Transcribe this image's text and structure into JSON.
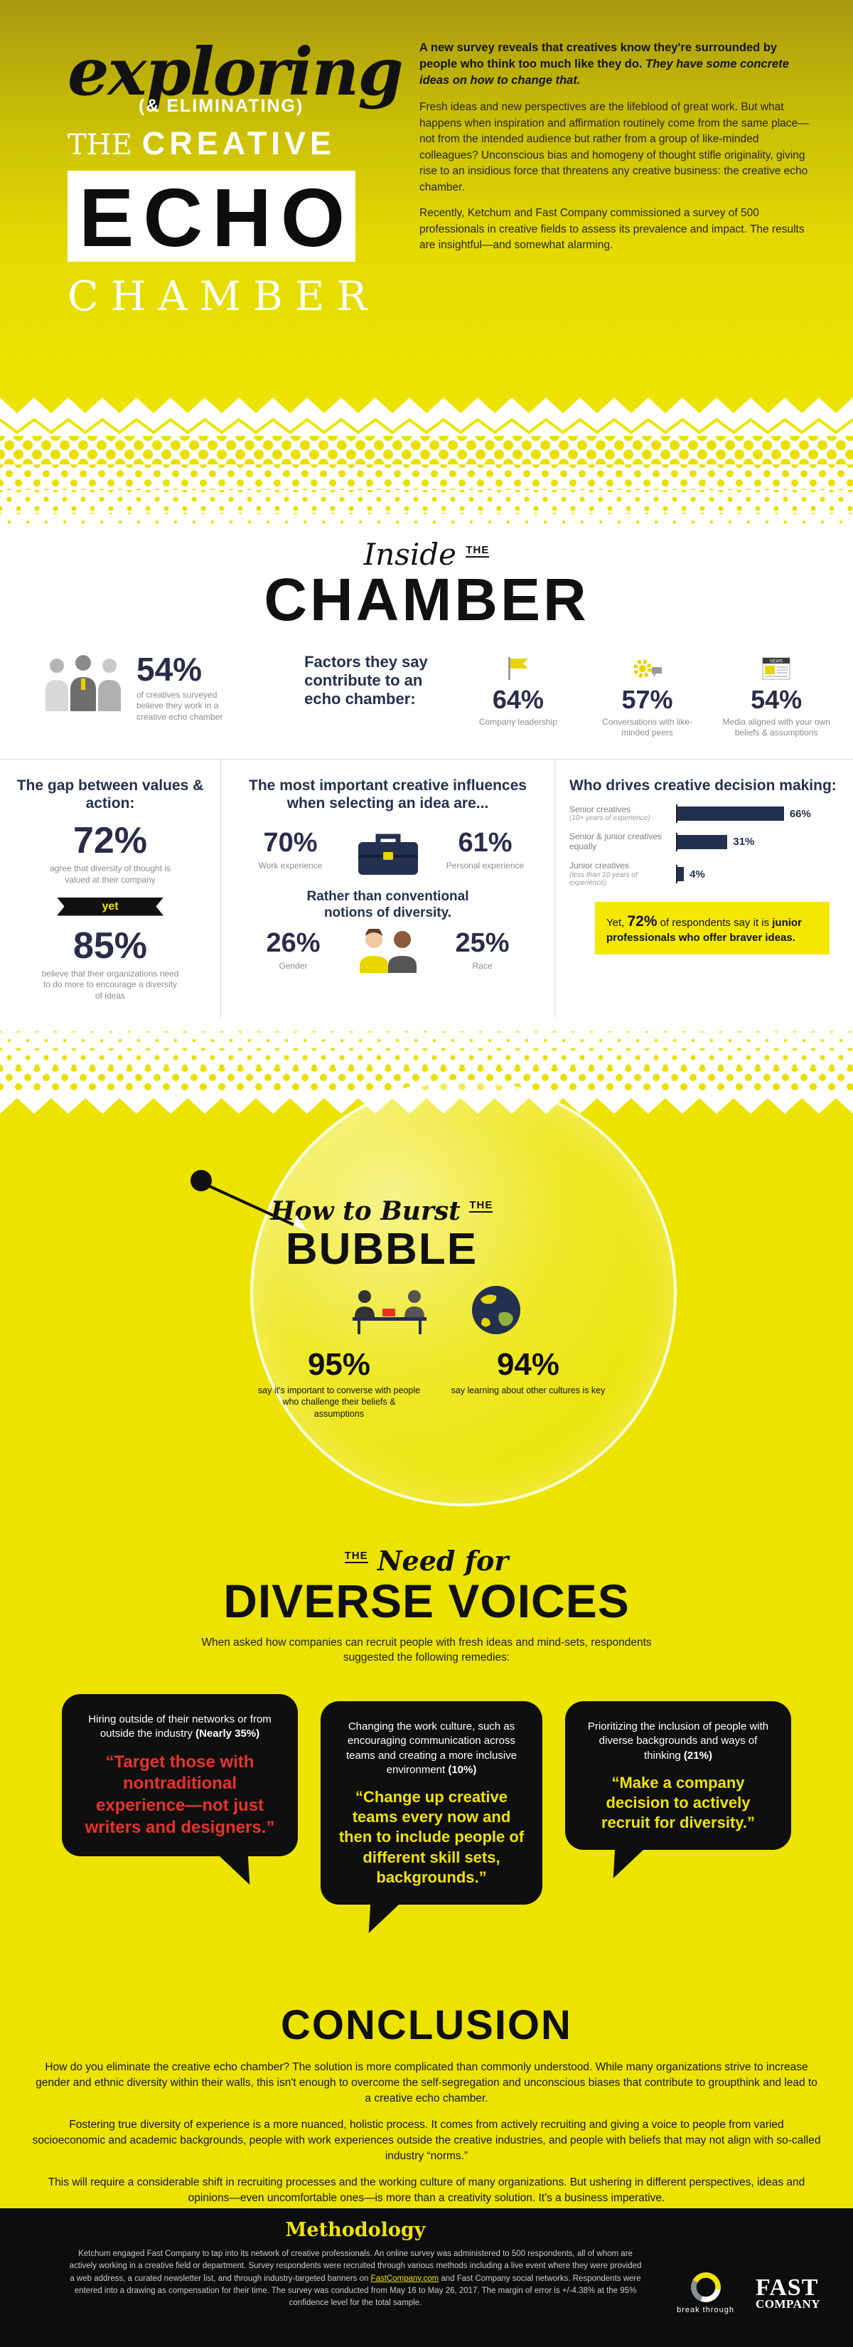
{
  "colors": {
    "yellow": "#ece400",
    "highlight_yellow": "#f5e800",
    "navy": "#233050",
    "red": "#e8332a",
    "black": "#0d0d0d"
  },
  "header": {
    "title_exploring": "exploring",
    "title_eliminating": "(& ELIMINATING)",
    "title_the": "THE",
    "title_creative": "CREATIVE",
    "title_echo": "ECHO",
    "title_chamber": "CHAMBER",
    "intro_bold1": "A new survey reveals that creatives know they're surrounded by people who think too much like they do.",
    "intro_bold2": "They have some concrete ideas on how to change that.",
    "para1": "Fresh ideas and new perspectives are the lifeblood of great work. But what happens when inspiration and affirmation routinely come from the same place—not from the intended audience but rather from a group of like-minded colleagues? Unconscious bias and homogeny of thought stifle originality, giving rise to an insidious force that threatens any creative business: the creative echo chamber.",
    "para2": "Recently, Ketchum and Fast Company commissioned a survey of 500 professionals in creative fields to assess its prevalence and impact. The results are insightful—and somewhat alarming."
  },
  "chamber": {
    "title_inside": "Inside",
    "title_the": "THE",
    "title_chamber": "CHAMBER",
    "stat": {
      "value": "54%",
      "label": "of creatives surveyed believe they work in a creative echo chamber"
    },
    "factors_heading": "Factors they say contribute to an echo chamber:",
    "factors": [
      {
        "value": "64%",
        "label": "Company leadership"
      },
      {
        "value": "57%",
        "label": "Conversations with like-minded peers"
      },
      {
        "value": "54%",
        "label": "Media aligned with your own beliefs & assumptions"
      }
    ],
    "news_icon_label": "NEWS"
  },
  "gap": {
    "title": "The gap between values & action:",
    "stat1": {
      "value": "72%",
      "label": "agree that diversity of thought is valued at their company"
    },
    "yet_label": "yet",
    "stat2": {
      "value": "85%",
      "label": "believe that their organizations need to do more to encourage a diversity of ideas"
    }
  },
  "influences": {
    "title": "The most important creative influences when selecting an idea are...",
    "work": {
      "value": "70%",
      "label": "Work experience"
    },
    "personal": {
      "value": "61%",
      "label": "Personal experience"
    },
    "rather": "Rather than conventional notions of diversity.",
    "gender": {
      "value": "26%",
      "label": "Gender"
    },
    "race": {
      "value": "25%",
      "label": "Race"
    }
  },
  "decision": {
    "title": "Who drives creative decision making:",
    "bars": [
      {
        "label": "Senior creatives",
        "sublabel": "(10+ years of experience)",
        "value": 66,
        "display": "66%"
      },
      {
        "label": "Senior & junior creatives equally",
        "sublabel": "",
        "value": 31,
        "display": "31%"
      },
      {
        "label": "Junior creatives",
        "sublabel": "(less than 10 years of experience)",
        "value": 4,
        "display": "4%"
      }
    ],
    "callout_pre": "Yet, ",
    "callout_value": "72%",
    "callout_mid": " of respondents say it is ",
    "callout_bold": "junior professionals who offer braver ideas."
  },
  "bubble": {
    "title_how": "How to Burst",
    "title_the": "THE",
    "title_bubble": "BUBBLE",
    "stats": [
      {
        "value": "95%",
        "label": "say it's important to converse with people who challenge their beliefs & assumptions"
      },
      {
        "value": "94%",
        "label": "say learning about other cultures is key"
      }
    ]
  },
  "voices": {
    "title_the": "THE",
    "title_need": "Need for",
    "title_main": "DIVERSE VOICES",
    "intro": "When asked how companies can recruit people with fresh ideas and mind-sets, respondents suggested the following remedies:",
    "bubbles": [
      {
        "desc": "Hiring outside of their networks or from outside the industry",
        "pct": "(Nearly 35%)",
        "quote": "“Target those with nontraditional experience—not just writers and designers.”"
      },
      {
        "desc": "Changing the work culture, such as encouraging communication across teams and creating a more inclusive environment",
        "pct": "(10%)",
        "quote": "“Change up creative teams every now and then to include people of different skill sets, backgrounds.”"
      },
      {
        "desc": "Prioritizing the inclusion of people with diverse backgrounds and ways of thinking",
        "pct": "(21%)",
        "quote": "“Make a company decision to actively recruit for diversity.”"
      }
    ]
  },
  "conclusion": {
    "title": "CONCLUSION",
    "para1": "How do you eliminate the creative echo chamber? The solution is more complicated than commonly understood. While many organizations strive to increase gender and ethnic diversity within their walls, this isn't enough to overcome the self-segregation and unconscious biases that contribute to groupthink and lead to a creative echo chamber.",
    "para2": "Fostering true diversity of experience is a more nuanced, holistic process. It comes from actively recruiting and giving a voice to people from varied socioeconomic and academic backgrounds, people with work experiences outside the creative industries, and people with beliefs that may not align with so-called industry “norms.”",
    "para3": "This will require a considerable shift in recruiting processes and the working culture of many organizations. But ushering in different perspectives, ideas and opinions—even uncomfortable ones—is more than a creativity solution. It's a business imperative."
  },
  "methodology": {
    "title": "Methodology",
    "text_pre": "Ketchum engaged Fast Company to tap into its network of creative professionals. An online survey was administered to 500 respondents, all of whom are actively working in a creative field or department. Survey respondents were recruited through various methods including a live event where they were provided a web address, a curated newsletter list, and through industry-targeted banners on ",
    "link_text": "FastCompany.com",
    "text_post": " and Fast Company social networks. Respondents were entered into a drawing as compensation for their time. The survey was conducted from May 16 to May 26, 2017. The margin of error is +/-4.38% at the 95% confidence level for the total sample.",
    "ketchum_logo_label": "break through",
    "fastco_line1": "FAST",
    "fastco_line2": "COMPANY"
  },
  "chart_data": [
    {
      "type": "bar",
      "title": "Who drives creative decision making:",
      "categories": [
        "Senior creatives (10+ years of experience)",
        "Senior & junior creatives equally",
        "Junior creatives (less than 10 years of experience)"
      ],
      "values": [
        66,
        31,
        4
      ],
      "unit": "%",
      "orientation": "horizontal",
      "xlim": [
        0,
        100
      ],
      "grid": false,
      "bar_color": "#233050"
    },
    {
      "type": "table",
      "title": "Factors that contribute to an echo chamber",
      "categories": [
        "Company leadership",
        "Conversations with like-minded peers",
        "Media aligned with your own beliefs & assumptions"
      ],
      "values": [
        64,
        57,
        54
      ],
      "unit": "%"
    },
    {
      "type": "table",
      "title": "Most important creative influences when selecting an idea",
      "categories": [
        "Work experience",
        "Personal experience",
        "Gender",
        "Race"
      ],
      "values": [
        70,
        61,
        26,
        25
      ],
      "unit": "%"
    },
    {
      "type": "table",
      "title": "Key survey stats",
      "categories": [
        "Believe they work in a creative echo chamber",
        "Agree diversity of thought is valued at their company",
        "Believe organizations need to do more to encourage a diversity of ideas",
        "Say junior professionals offer braver ideas",
        "Say it's important to converse with people who challenge their beliefs & assumptions",
        "Say learning about other cultures is key",
        "Remedy: hiring outside networks or industry (nearly)",
        "Remedy: changing the work culture",
        "Remedy: prioritizing inclusion of diverse backgrounds"
      ],
      "values": [
        54,
        72,
        85,
        72,
        95,
        94,
        35,
        10,
        21
      ],
      "unit": "%"
    }
  ]
}
